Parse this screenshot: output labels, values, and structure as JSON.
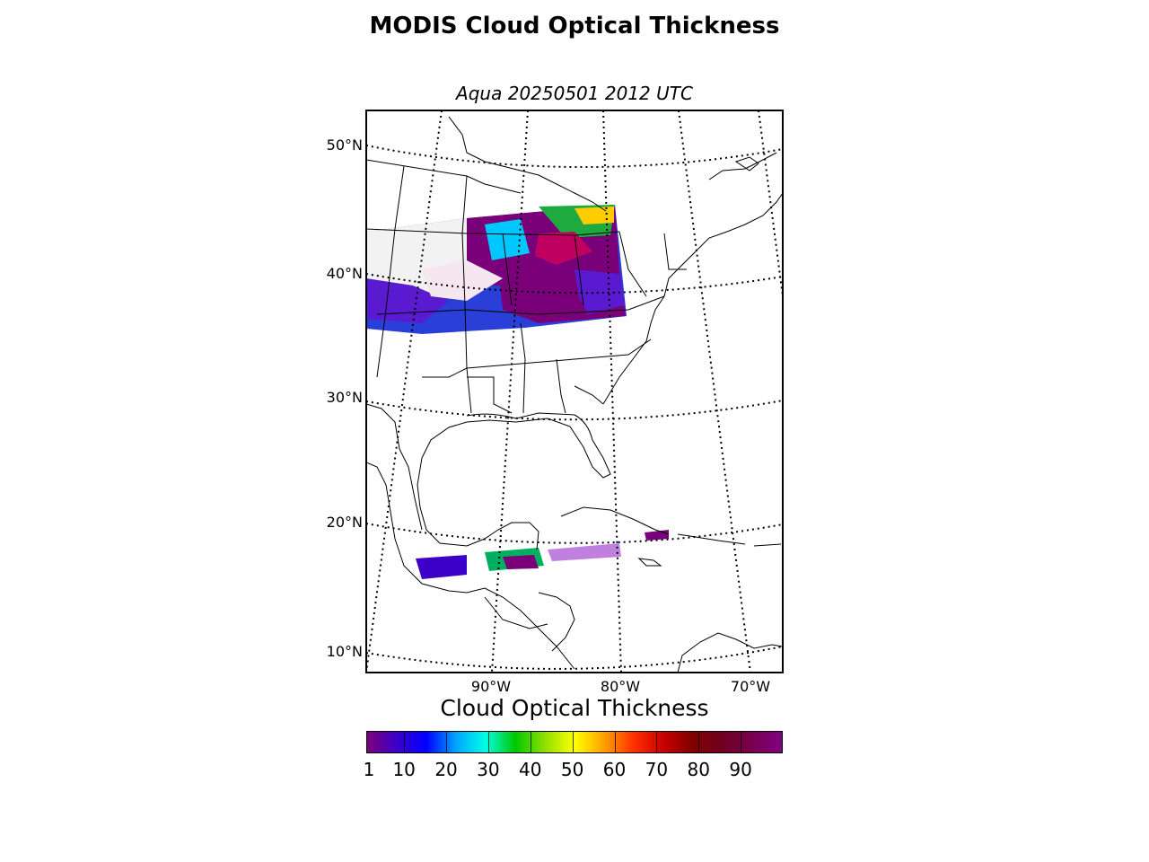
{
  "title": "MODIS Cloud Optical Thickness",
  "subtitle": "Aqua 20250501 2012 UTC",
  "map": {
    "projection": "lambert-conformal",
    "lat_labels": [
      "50°N",
      "40°N",
      "30°N",
      "20°N",
      "10°N"
    ],
    "lon_labels": [
      "90°W",
      "80°W",
      "70°W"
    ],
    "grid_line_style": "dotted",
    "swaths": [
      {
        "region": "central and eastern United States",
        "coverage": "dense"
      },
      {
        "region": "northwest Caribbean / Yucatan",
        "coverage": "sparse"
      }
    ]
  },
  "colorbar": {
    "title": "Cloud Optical Thickness",
    "ticks": [
      "1",
      "10",
      "20",
      "30",
      "40",
      "50",
      "60",
      "70",
      "80",
      "90"
    ],
    "range": [
      1,
      100
    ],
    "colormap": [
      "#7a007a",
      "#3d00c8",
      "#0000ff",
      "#00a5ff",
      "#00ffe6",
      "#00c800",
      "#8fe000",
      "#ffff00",
      "#ffa000",
      "#ff3000",
      "#c80000",
      "#800000",
      "#700020",
      "#780050",
      "#800080"
    ]
  }
}
